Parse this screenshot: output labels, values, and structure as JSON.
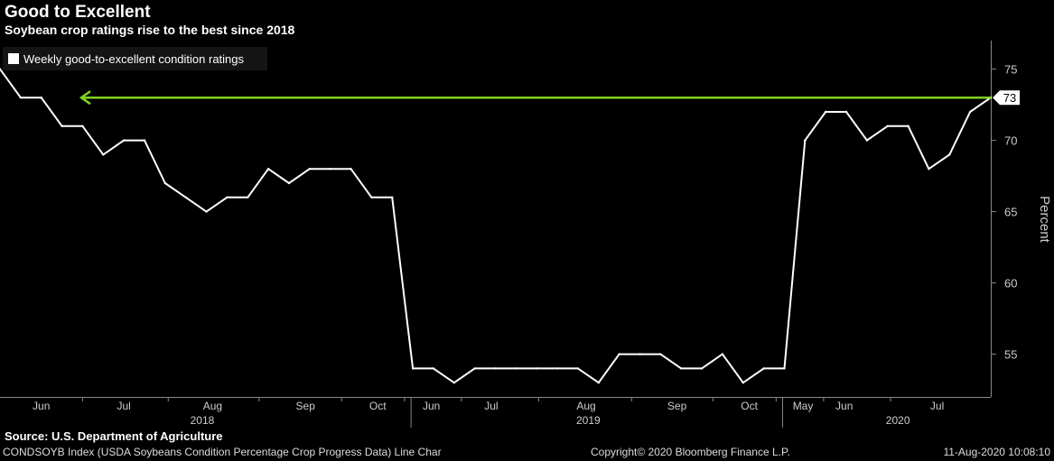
{
  "title": "Good to Excellent",
  "subtitle": "Soybean crop ratings rise to the best since 2018",
  "chart_data": {
    "type": "line",
    "ylabel": "Percent",
    "ylim": [
      52,
      77
    ],
    "yticks": [
      55,
      60,
      65,
      70,
      75
    ],
    "grid": false,
    "legend_position": "top-left",
    "series": [
      {
        "name": "Weekly good-to-excellent condition ratings",
        "color": "#ffffff",
        "values": [
          75,
          73,
          73,
          71,
          71,
          69,
          70,
          70,
          67,
          66,
          65,
          66,
          66,
          68,
          67,
          68,
          68,
          68,
          66,
          66,
          54,
          54,
          53,
          54,
          54,
          54,
          54,
          54,
          54,
          53,
          55,
          55,
          55,
          54,
          54,
          55,
          53,
          54,
          54,
          70,
          72,
          72,
          70,
          71,
          71,
          68,
          69,
          72,
          73
        ]
      }
    ],
    "annotation": {
      "type": "horizontal-arrow",
      "value": 73,
      "color": "#7ed321",
      "label": "73"
    },
    "x_month_labels": [
      {
        "label": "Jun",
        "index": 2
      },
      {
        "label": "Jul",
        "index": 6
      },
      {
        "label": "Aug",
        "index": 10.3
      },
      {
        "label": "Sep",
        "index": 14.8
      },
      {
        "label": "Oct",
        "index": 18.3
      },
      {
        "label": "Jun",
        "index": 20.9
      },
      {
        "label": "Jul",
        "index": 23.8
      },
      {
        "label": "Aug",
        "index": 28.4
      },
      {
        "label": "Sep",
        "index": 32.8
      },
      {
        "label": "Oct",
        "index": 36.3
      },
      {
        "label": "May",
        "index": 38.9
      },
      {
        "label": "Jun",
        "index": 40.9
      },
      {
        "label": "Jul",
        "index": 45.4
      }
    ],
    "x_year_labels": [
      {
        "label": "2018",
        "index": 9.8
      },
      {
        "label": "2019",
        "index": 28.5
      },
      {
        "label": "2020",
        "index": 43.5
      }
    ],
    "year_dividers": [
      20,
      38
    ]
  },
  "footer": {
    "source": "Source: U.S. Department of Agriculture",
    "index": "CONDSOYB Index (USDA Soybeans Condition Percentage Crop Progress Data) Line Char",
    "copyright": "Copyright© 2020 Bloomberg Finance L.P.",
    "timestamp": "11-Aug-2020 10:08:10"
  }
}
